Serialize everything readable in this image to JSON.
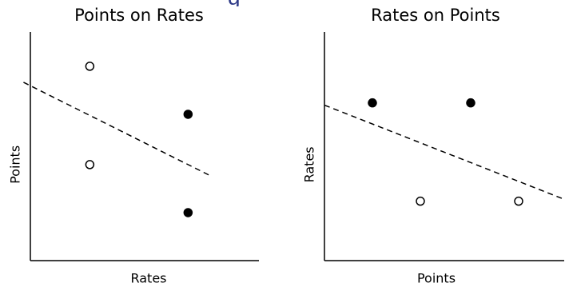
{
  "top_strip_text": "g",
  "colors": {
    "axis": "#000000",
    "marker": "#000000",
    "fit_line": "#000000",
    "top_strip": "#2e3a87"
  },
  "chart_data": [
    {
      "type": "scatter",
      "title": "Points on Rates",
      "xlabel": "Rates",
      "ylabel": "Points",
      "xlim": [
        0,
        1
      ],
      "ylim": [
        0,
        1
      ],
      "grid": false,
      "ticks": false,
      "points": [
        {
          "x": 0.26,
          "y": 0.85,
          "filled": false
        },
        {
          "x": 0.26,
          "y": 0.42,
          "filled": false
        },
        {
          "x": 0.69,
          "y": 0.64,
          "filled": true
        },
        {
          "x": 0.69,
          "y": 0.21,
          "filled": true
        }
      ],
      "fit_line": {
        "style": "dashed",
        "x0": -0.03,
        "y0": 0.78,
        "x1": 0.79,
        "y1": 0.37
      }
    },
    {
      "type": "scatter",
      "title": "Rates on Points",
      "xlabel": "Points",
      "ylabel": "Rates",
      "xlim": [
        0,
        1
      ],
      "ylim": [
        0,
        1
      ],
      "grid": false,
      "ticks": false,
      "points": [
        {
          "x": 0.2,
          "y": 0.69,
          "filled": true
        },
        {
          "x": 0.61,
          "y": 0.69,
          "filled": true
        },
        {
          "x": 0.4,
          "y": 0.26,
          "filled": false
        },
        {
          "x": 0.81,
          "y": 0.26,
          "filled": false
        }
      ],
      "fit_line": {
        "style": "dashed",
        "x0": 0.0,
        "y0": 0.68,
        "x1": 1.02,
        "y1": 0.26
      }
    }
  ]
}
